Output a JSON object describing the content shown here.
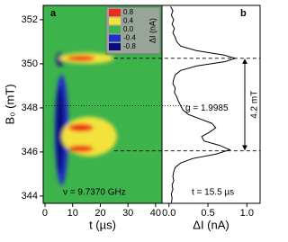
{
  "chart_data": [
    {
      "type": "heatmap",
      "panel_label": "a",
      "xlabel": "t (µs)",
      "ylabel": "B₀ (mT)",
      "annotation": "ν = 9.7370 GHz",
      "xlim": [
        -0.65,
        42.3
      ],
      "xticks": [
        0,
        10,
        20,
        30,
        40
      ],
      "ylim": [
        343.67,
        352.65
      ],
      "yticks": [
        344,
        346,
        348,
        350,
        352
      ],
      "colorbar": {
        "title": "ΔI (nA)",
        "colors": [
          "#f02a1e",
          "#f2e23a",
          "#3db34c",
          "#2230c8",
          "#0a0a78"
        ],
        "levels": [
          0.8,
          0.4,
          {
            "value": 0,
            "label": "0.0"
          },
          -0.4,
          -0.8
        ]
      },
      "blobs": [
        {
          "t": 6,
          "B": 347,
          "dt": 5,
          "dB": 5,
          "value": -0.4
        },
        {
          "t": 5.5,
          "B": 347,
          "dt": 3,
          "dB": 4,
          "value": -0.8
        },
        {
          "t": 5.5,
          "B": 350.2,
          "dt": 3,
          "dB": 0.6,
          "value": -0.8
        },
        {
          "t": 15,
          "B": 350.25,
          "dt": 20,
          "dB": 0.5,
          "value": 0.4
        },
        {
          "t": 13,
          "B": 350.25,
          "dt": 10,
          "dB": 0.25,
          "value": 0.8
        },
        {
          "t": 16,
          "B": 346.7,
          "dt": 20,
          "dB": 1.8,
          "value": 0.4
        },
        {
          "t": 13,
          "B": 347.1,
          "dt": 9,
          "dB": 0.35,
          "value": 0.8
        },
        {
          "t": 13,
          "B": 346.15,
          "dt": 9,
          "dB": 0.3,
          "value": 0.8
        }
      ]
    },
    {
      "type": "line",
      "panel_label": "b",
      "xlabel": "ΔI (nA)",
      "annotation": "t = 15.5 µs",
      "g_label": "g = 1.9985",
      "split_label": "4.2 mT",
      "xlim": [
        -0.09,
        1.17
      ],
      "xticks": [
        {
          "value": 0,
          "label": "0.0"
        },
        0.5,
        {
          "value": 1,
          "label": "1.0"
        }
      ],
      "ylim": [
        343.67,
        352.65
      ],
      "hlines": [
        {
          "value": 350.25,
          "style": "dashed"
        },
        {
          "value": 346.05,
          "style": "dashed"
        },
        {
          "value": 348.1,
          "style": "dotted"
        }
      ],
      "series": [
        {
          "color": "#000000",
          "B": [
            352.6,
            352.4,
            352.2,
            352.0,
            351.8,
            351.6,
            351.4,
            351.2,
            351.0,
            350.8,
            350.6,
            350.4,
            350.25,
            350.1,
            349.9,
            349.7,
            349.5,
            349.3,
            349.1,
            348.9,
            348.7,
            348.5,
            348.3,
            348.1,
            347.9,
            347.7,
            347.5,
            347.3,
            347.1,
            346.9,
            346.7,
            346.5,
            346.3,
            346.1,
            345.9,
            345.7,
            345.5,
            345.3,
            345.1,
            344.9,
            344.7,
            344.5,
            344.3,
            344.1,
            343.9,
            343.7
          ],
          "values": [
            0.02,
            0.05,
            0.03,
            0.06,
            0.04,
            0.07,
            0.05,
            0.08,
            0.1,
            0.15,
            0.35,
            0.7,
            0.85,
            0.72,
            0.35,
            0.15,
            0.08,
            0.06,
            0.05,
            0.08,
            0.07,
            0.1,
            0.12,
            0.15,
            0.18,
            0.25,
            0.4,
            0.55,
            0.6,
            0.52,
            0.42,
            0.45,
            0.65,
            0.78,
            0.6,
            0.3,
            0.15,
            0.08,
            0.06,
            0.05,
            0.06,
            0.04,
            0.05,
            0.03,
            0.04,
            0.03
          ]
        }
      ]
    }
  ]
}
